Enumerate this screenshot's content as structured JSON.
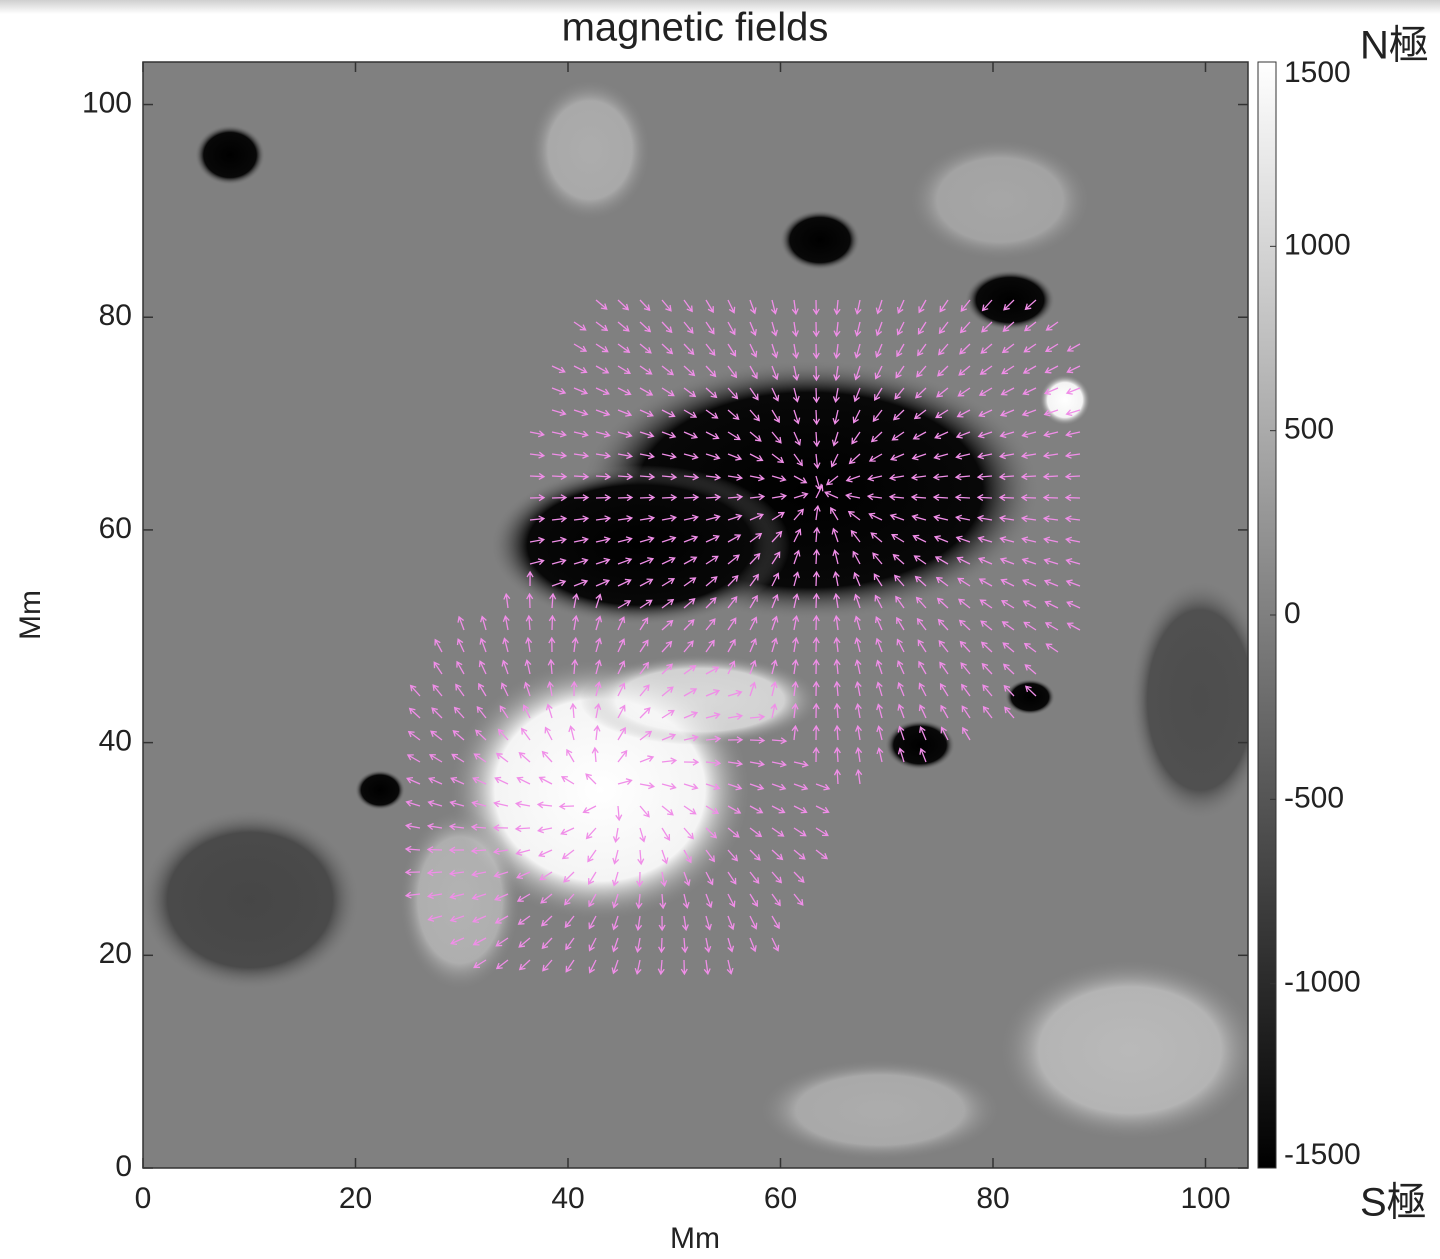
{
  "chart_data": {
    "type": "image",
    "title": "magnetic fields",
    "xlabel": "Mm",
    "ylabel": "Mm",
    "xlim": [
      0,
      104
    ],
    "ylim": [
      0,
      104
    ],
    "xticks": [
      0,
      20,
      40,
      60,
      80,
      100
    ],
    "yticks": [
      0,
      20,
      40,
      60,
      80,
      100
    ],
    "colorbar": {
      "clim": [
        -1500,
        1500
      ],
      "ticks": [
        1500,
        1000,
        500,
        0,
        -500,
        -1000,
        -1500
      ]
    },
    "arrow_color": "#f08ee8",
    "annotations": [
      "N極",
      "S極"
    ]
  }
}
